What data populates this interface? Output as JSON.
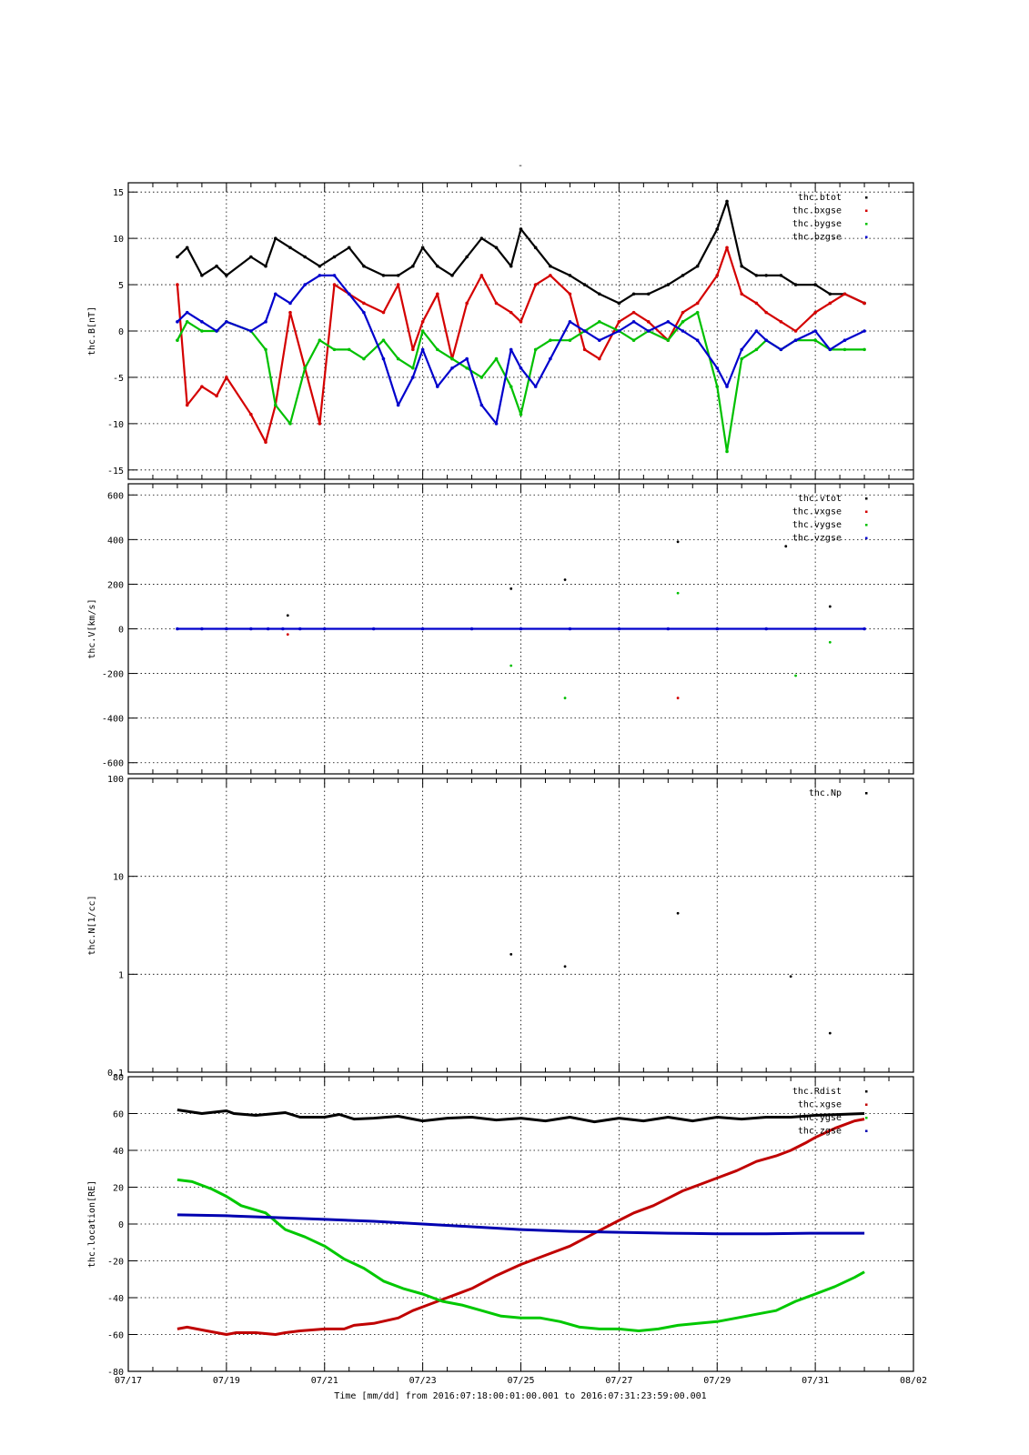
{
  "page_title": "-",
  "x_axis": {
    "title": "Time [mm/dd]  from 2016:07:18:00:01:00.001  to  2016:07:31:23:59:00.001",
    "range_days": [
      0,
      16
    ],
    "ticks": [
      {
        "day": 0,
        "label": "07/17"
      },
      {
        "day": 2,
        "label": "07/19"
      },
      {
        "day": 4,
        "label": "07/21"
      },
      {
        "day": 6,
        "label": "07/23"
      },
      {
        "day": 8,
        "label": "07/25"
      },
      {
        "day": 10,
        "label": "07/27"
      },
      {
        "day": 12,
        "label": "07/29"
      },
      {
        "day": 14,
        "label": "07/31"
      },
      {
        "day": 16,
        "label": "08/02"
      }
    ]
  },
  "chart_data": [
    {
      "type": "scatter",
      "ylabel": "thc.B[nT]",
      "ylim": [
        -16,
        16
      ],
      "yticks": [
        -15,
        -10,
        -5,
        0,
        5,
        10,
        15
      ],
      "grid": true,
      "legend_position": "top-right",
      "series": [
        {
          "name": "thc.btot",
          "color": "#000000",
          "x": [
            1.0,
            1.2,
            1.5,
            1.8,
            2.0,
            2.5,
            2.8,
            3.0,
            3.3,
            3.6,
            3.9,
            4.2,
            4.5,
            4.8,
            5.2,
            5.5,
            5.8,
            6.0,
            6.3,
            6.6,
            6.9,
            7.2,
            7.5,
            7.8,
            8.0,
            8.3,
            8.6,
            9.0,
            9.3,
            9.6,
            10.0,
            10.3,
            10.6,
            11.0,
            11.3,
            11.6,
            12.0,
            12.2,
            12.5,
            12.8,
            13.0,
            13.3,
            13.6,
            14.0,
            14.3,
            14.6,
            15.0
          ],
          "y": [
            8,
            9,
            6,
            7,
            6,
            8,
            7,
            10,
            9,
            8,
            7,
            8,
            9,
            7,
            6,
            6,
            7,
            9,
            7,
            6,
            8,
            10,
            9,
            7,
            11,
            9,
            7,
            6,
            5,
            4,
            3,
            4,
            4,
            5,
            6,
            7,
            11,
            14,
            7,
            6,
            6,
            6,
            5,
            5,
            4,
            4,
            3
          ]
        },
        {
          "name": "thc.bxgse",
          "color": "#d40000",
          "x": [
            1.0,
            1.2,
            1.5,
            1.8,
            2.0,
            2.5,
            2.8,
            3.0,
            3.3,
            3.6,
            3.9,
            4.2,
            4.5,
            4.8,
            5.2,
            5.5,
            5.8,
            6.0,
            6.3,
            6.6,
            6.9,
            7.2,
            7.5,
            7.8,
            8.0,
            8.3,
            8.6,
            9.0,
            9.3,
            9.6,
            10.0,
            10.3,
            10.6,
            11.0,
            11.3,
            11.6,
            12.0,
            12.2,
            12.5,
            12.8,
            13.0,
            13.3,
            13.6,
            14.0,
            14.3,
            14.6,
            15.0
          ],
          "y": [
            5,
            -8,
            -6,
            -7,
            -5,
            -9,
            -12,
            -8,
            2,
            -4,
            -10,
            5,
            4,
            3,
            2,
            5,
            -2,
            1,
            4,
            -3,
            3,
            6,
            3,
            2,
            1,
            5,
            6,
            4,
            -2,
            -3,
            1,
            2,
            1,
            -1,
            2,
            3,
            6,
            9,
            4,
            3,
            2,
            1,
            0,
            2,
            3,
            4,
            3
          ]
        },
        {
          "name": "thc.bygse",
          "color": "#00c000",
          "x": [
            1.0,
            1.2,
            1.5,
            1.8,
            2.0,
            2.5,
            2.8,
            3.0,
            3.3,
            3.6,
            3.9,
            4.2,
            4.5,
            4.8,
            5.2,
            5.5,
            5.8,
            6.0,
            6.3,
            6.6,
            6.9,
            7.2,
            7.5,
            7.8,
            8.0,
            8.3,
            8.6,
            9.0,
            9.3,
            9.6,
            10.0,
            10.3,
            10.6,
            11.0,
            11.3,
            11.6,
            12.0,
            12.2,
            12.5,
            12.8,
            13.0,
            13.3,
            13.6,
            14.0,
            14.3,
            14.6,
            15.0
          ],
          "y": [
            -1,
            1,
            0,
            0,
            1,
            0,
            -2,
            -8,
            -10,
            -4,
            -1,
            -2,
            -2,
            -3,
            -1,
            -3,
            -4,
            0,
            -2,
            -3,
            -4,
            -5,
            -3,
            -6,
            -9,
            -2,
            -1,
            -1,
            0,
            1,
            0,
            -1,
            0,
            -1,
            1,
            2,
            -6,
            -13,
            -3,
            -2,
            -1,
            -2,
            -1,
            -1,
            -2,
            -2,
            -2
          ]
        },
        {
          "name": "thc.bzgse",
          "color": "#0000cc",
          "x": [
            1.0,
            1.2,
            1.5,
            1.8,
            2.0,
            2.5,
            2.8,
            3.0,
            3.3,
            3.6,
            3.9,
            4.2,
            4.5,
            4.8,
            5.2,
            5.5,
            5.8,
            6.0,
            6.3,
            6.6,
            6.9,
            7.2,
            7.5,
            7.8,
            8.0,
            8.3,
            8.6,
            9.0,
            9.3,
            9.6,
            10.0,
            10.3,
            10.6,
            11.0,
            11.3,
            11.6,
            12.0,
            12.2,
            12.5,
            12.8,
            13.0,
            13.3,
            13.6,
            14.0,
            14.3,
            14.6,
            15.0
          ],
          "y": [
            1,
            2,
            1,
            0,
            1,
            0,
            1,
            4,
            3,
            5,
            6,
            6,
            4,
            2,
            -3,
            -8,
            -5,
            -2,
            -6,
            -4,
            -3,
            -8,
            -10,
            -2,
            -4,
            -6,
            -3,
            1,
            0,
            -1,
            0,
            1,
            0,
            1,
            0,
            -1,
            -4,
            -6,
            -2,
            0,
            -1,
            -2,
            -1,
            0,
            -2,
            -1,
            0
          ]
        }
      ]
    },
    {
      "type": "scatter",
      "ylabel": "thc.V[km/s]",
      "ylim": [
        -650,
        650
      ],
      "yticks": [
        -600,
        -400,
        -200,
        0,
        200,
        400,
        600
      ],
      "grid": true,
      "legend_position": "top-right",
      "series": [
        {
          "name": "thc.vtot",
          "color": "#000000",
          "x": [
            3.25,
            7.8,
            8.9,
            11.2,
            13.4,
            14.3
          ],
          "y": [
            60,
            180,
            220,
            390,
            370,
            100
          ]
        },
        {
          "name": "thc.vxgse",
          "color": "#d40000",
          "x": [
            3.25,
            11.2
          ],
          "y": [
            -25,
            -310
          ]
        },
        {
          "name": "thc.vygse",
          "color": "#00c000",
          "x": [
            7.8,
            8.9,
            11.2,
            13.6,
            14.3
          ],
          "y": [
            -165,
            -310,
            160,
            -210,
            -60
          ]
        },
        {
          "name": "thc.vzgse",
          "color": "#0000cc",
          "x": [
            1.0,
            1.5,
            2.0,
            2.5,
            2.85,
            3.15,
            3.5,
            4.0,
            5.0,
            6.0,
            7.0,
            8.0,
            9.0,
            10.0,
            11.0,
            12.0,
            13.0,
            14.0,
            15.0
          ],
          "y": [
            0,
            0,
            0,
            0,
            0,
            0,
            0,
            0,
            0,
            0,
            0,
            0,
            0,
            0,
            0,
            0,
            0,
            0,
            0
          ]
        }
      ]
    },
    {
      "type": "scatter",
      "ylabel": "thc.N[1/cc]",
      "yscale": "log",
      "ylim": [
        0.1,
        100
      ],
      "yticks": [
        0.1,
        1,
        10,
        100
      ],
      "ytick_labels": [
        "0.1",
        "1",
        "10",
        "100"
      ],
      "grid": true,
      "legend_position": "top-right",
      "series": [
        {
          "name": "thc.Np",
          "color": "#000000",
          "x": [
            7.8,
            8.9,
            11.2,
            13.5,
            14.3
          ],
          "y": [
            1.6,
            1.2,
            4.2,
            0.95,
            0.25
          ]
        }
      ]
    },
    {
      "type": "line",
      "ylabel": "thc.location[RE]",
      "ylim": [
        -80,
        80
      ],
      "yticks": [
        -80,
        -60,
        -40,
        -20,
        0,
        20,
        40,
        60,
        80
      ],
      "grid": true,
      "legend_position": "top-right",
      "series": [
        {
          "name": "thc.Rdist",
          "color": "#000000",
          "x": [
            1.0,
            1.5,
            2.0,
            2.15,
            2.6,
            3.0,
            3.2,
            3.5,
            4.0,
            4.3,
            4.6,
            5.0,
            5.5,
            6.0,
            6.5,
            7.0,
            7.5,
            8.0,
            8.5,
            9.0,
            9.5,
            10.0,
            10.5,
            11.0,
            11.5,
            12.0,
            12.5,
            13.0,
            13.5,
            14.0,
            14.5,
            15.0
          ],
          "y": [
            62,
            60,
            61.5,
            60,
            59,
            60,
            60.5,
            58,
            58,
            59.5,
            57,
            57.5,
            58.5,
            56,
            57.5,
            58,
            56.5,
            57.5,
            56,
            58,
            55.5,
            57.5,
            56,
            58,
            56,
            58,
            57,
            58,
            58,
            59,
            59.5,
            60
          ]
        },
        {
          "name": "thc.xgse",
          "color": "#c00000",
          "x": [
            1.0,
            1.2,
            1.6,
            2.0,
            2.2,
            2.6,
            3.0,
            3.2,
            3.5,
            4.0,
            4.4,
            4.6,
            5.0,
            5.5,
            5.8,
            6.0,
            6.5,
            7.0,
            7.5,
            8.0,
            8.5,
            9.0,
            9.5,
            10.0,
            10.3,
            10.7,
            11.0,
            11.3,
            11.6,
            12.0,
            12.4,
            12.8,
            13.2,
            13.5,
            13.8,
            14.0,
            14.4,
            14.8,
            15.0
          ],
          "y": [
            -57,
            -56,
            -58,
            -60,
            -59,
            -59,
            -60,
            -59,
            -58,
            -57,
            -57,
            -55,
            -54,
            -51,
            -47,
            -45,
            -40,
            -35,
            -28,
            -22,
            -17,
            -12,
            -5,
            2,
            6,
            10,
            14,
            18,
            21,
            25,
            29,
            34,
            37,
            40,
            44,
            47,
            52,
            56,
            57
          ]
        },
        {
          "name": "thc.ygse",
          "color": "#00c800",
          "x": [
            1.0,
            1.3,
            1.7,
            2.0,
            2.3,
            2.8,
            3.2,
            3.6,
            4.0,
            4.4,
            4.8,
            5.2,
            5.6,
            6.0,
            6.4,
            6.8,
            7.2,
            7.6,
            8.0,
            8.4,
            8.8,
            9.2,
            9.6,
            10.0,
            10.4,
            10.8,
            11.2,
            11.6,
            12.0,
            12.4,
            12.8,
            13.2,
            13.6,
            14.0,
            14.4,
            14.8,
            15.0
          ],
          "y": [
            24,
            23,
            19,
            15,
            10,
            6,
            -3,
            -7,
            -12,
            -19,
            -24,
            -31,
            -35,
            -38,
            -42,
            -44,
            -47,
            -50,
            -51,
            -51,
            -53,
            -56,
            -57,
            -57,
            -58,
            -57,
            -55,
            -54,
            -53,
            -51,
            -49,
            -47,
            -42,
            -38,
            -34,
            -29,
            -26
          ]
        },
        {
          "name": "thc.zgse",
          "color": "#0000b0",
          "x": [
            1.0,
            2.0,
            3.0,
            4.0,
            5.0,
            6.0,
            7.0,
            8.0,
            9.0,
            10.0,
            11.0,
            12.0,
            13.0,
            14.0,
            15.0
          ],
          "y": [
            5,
            4.5,
            3.5,
            2.5,
            1.5,
            0,
            -1.5,
            -3,
            -4,
            -4.5,
            -5,
            -5.3,
            -5.3,
            -5,
            -5
          ]
        }
      ]
    }
  ]
}
